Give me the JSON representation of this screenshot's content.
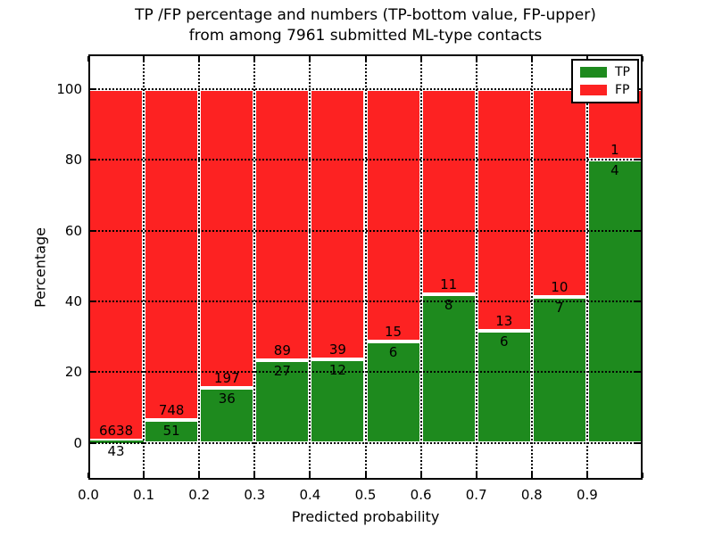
{
  "figure": {
    "title_line1": "TP /FP percentage and numbers (TP-bottom value, FP-upper)",
    "title_line2": "from among 7961 submitted ML-type contacts"
  },
  "chart_data": {
    "type": "bar",
    "stacked": true,
    "title": "TP /FP percentage and numbers (TP-bottom value, FP-upper) from among 7961 submitted ML-type contacts",
    "xlabel": "Predicted probability",
    "ylabel": "Percentage",
    "total_contacts": 7961,
    "x_bin_edges": [
      0.0,
      0.1,
      0.2,
      0.3,
      0.4,
      0.5,
      0.6,
      0.7,
      0.8,
      0.9,
      1.0
    ],
    "xtick_values": [
      0.0,
      0.1,
      0.2,
      0.3,
      0.4,
      0.5,
      0.6,
      0.7,
      0.8,
      0.9
    ],
    "xtick_labels": [
      "0.0",
      "0.1",
      "0.2",
      "0.3",
      "0.4",
      "0.5",
      "0.6",
      "0.7",
      "0.8",
      "0.9"
    ],
    "ytick_values": [
      0,
      20,
      40,
      60,
      80,
      100
    ],
    "ytick_labels": [
      "0",
      "20",
      "40",
      "60",
      "80",
      "100"
    ],
    "xlim": [
      0.0,
      1.0
    ],
    "ylim": [
      -10.4,
      109.8
    ],
    "grid": true,
    "bar_unit": "percent of bin total (TP% + FP% = 100)",
    "series": [
      {
        "name": "TP",
        "color": "#1e8a1e",
        "counts": [
          43,
          51,
          36,
          27,
          12,
          6,
          8,
          6,
          7,
          4
        ],
        "percent": [
          0.64,
          6.38,
          15.45,
          23.28,
          23.53,
          28.57,
          42.11,
          31.58,
          41.18,
          80.0
        ]
      },
      {
        "name": "FP",
        "color": "#fd2222",
        "counts": [
          6638,
          748,
          197,
          89,
          39,
          15,
          11,
          13,
          10,
          1
        ],
        "percent": [
          99.36,
          93.62,
          84.55,
          76.72,
          76.47,
          71.43,
          57.89,
          68.42,
          58.82,
          20.0
        ]
      }
    ],
    "legend_position": "upper right"
  },
  "colors": {
    "tp": "#1e8a1e",
    "fp": "#fd2222",
    "grid": "#000000",
    "spine": "#000000",
    "background": "#ffffff",
    "text": "#000000",
    "bar_edge": "#ffffff"
  }
}
